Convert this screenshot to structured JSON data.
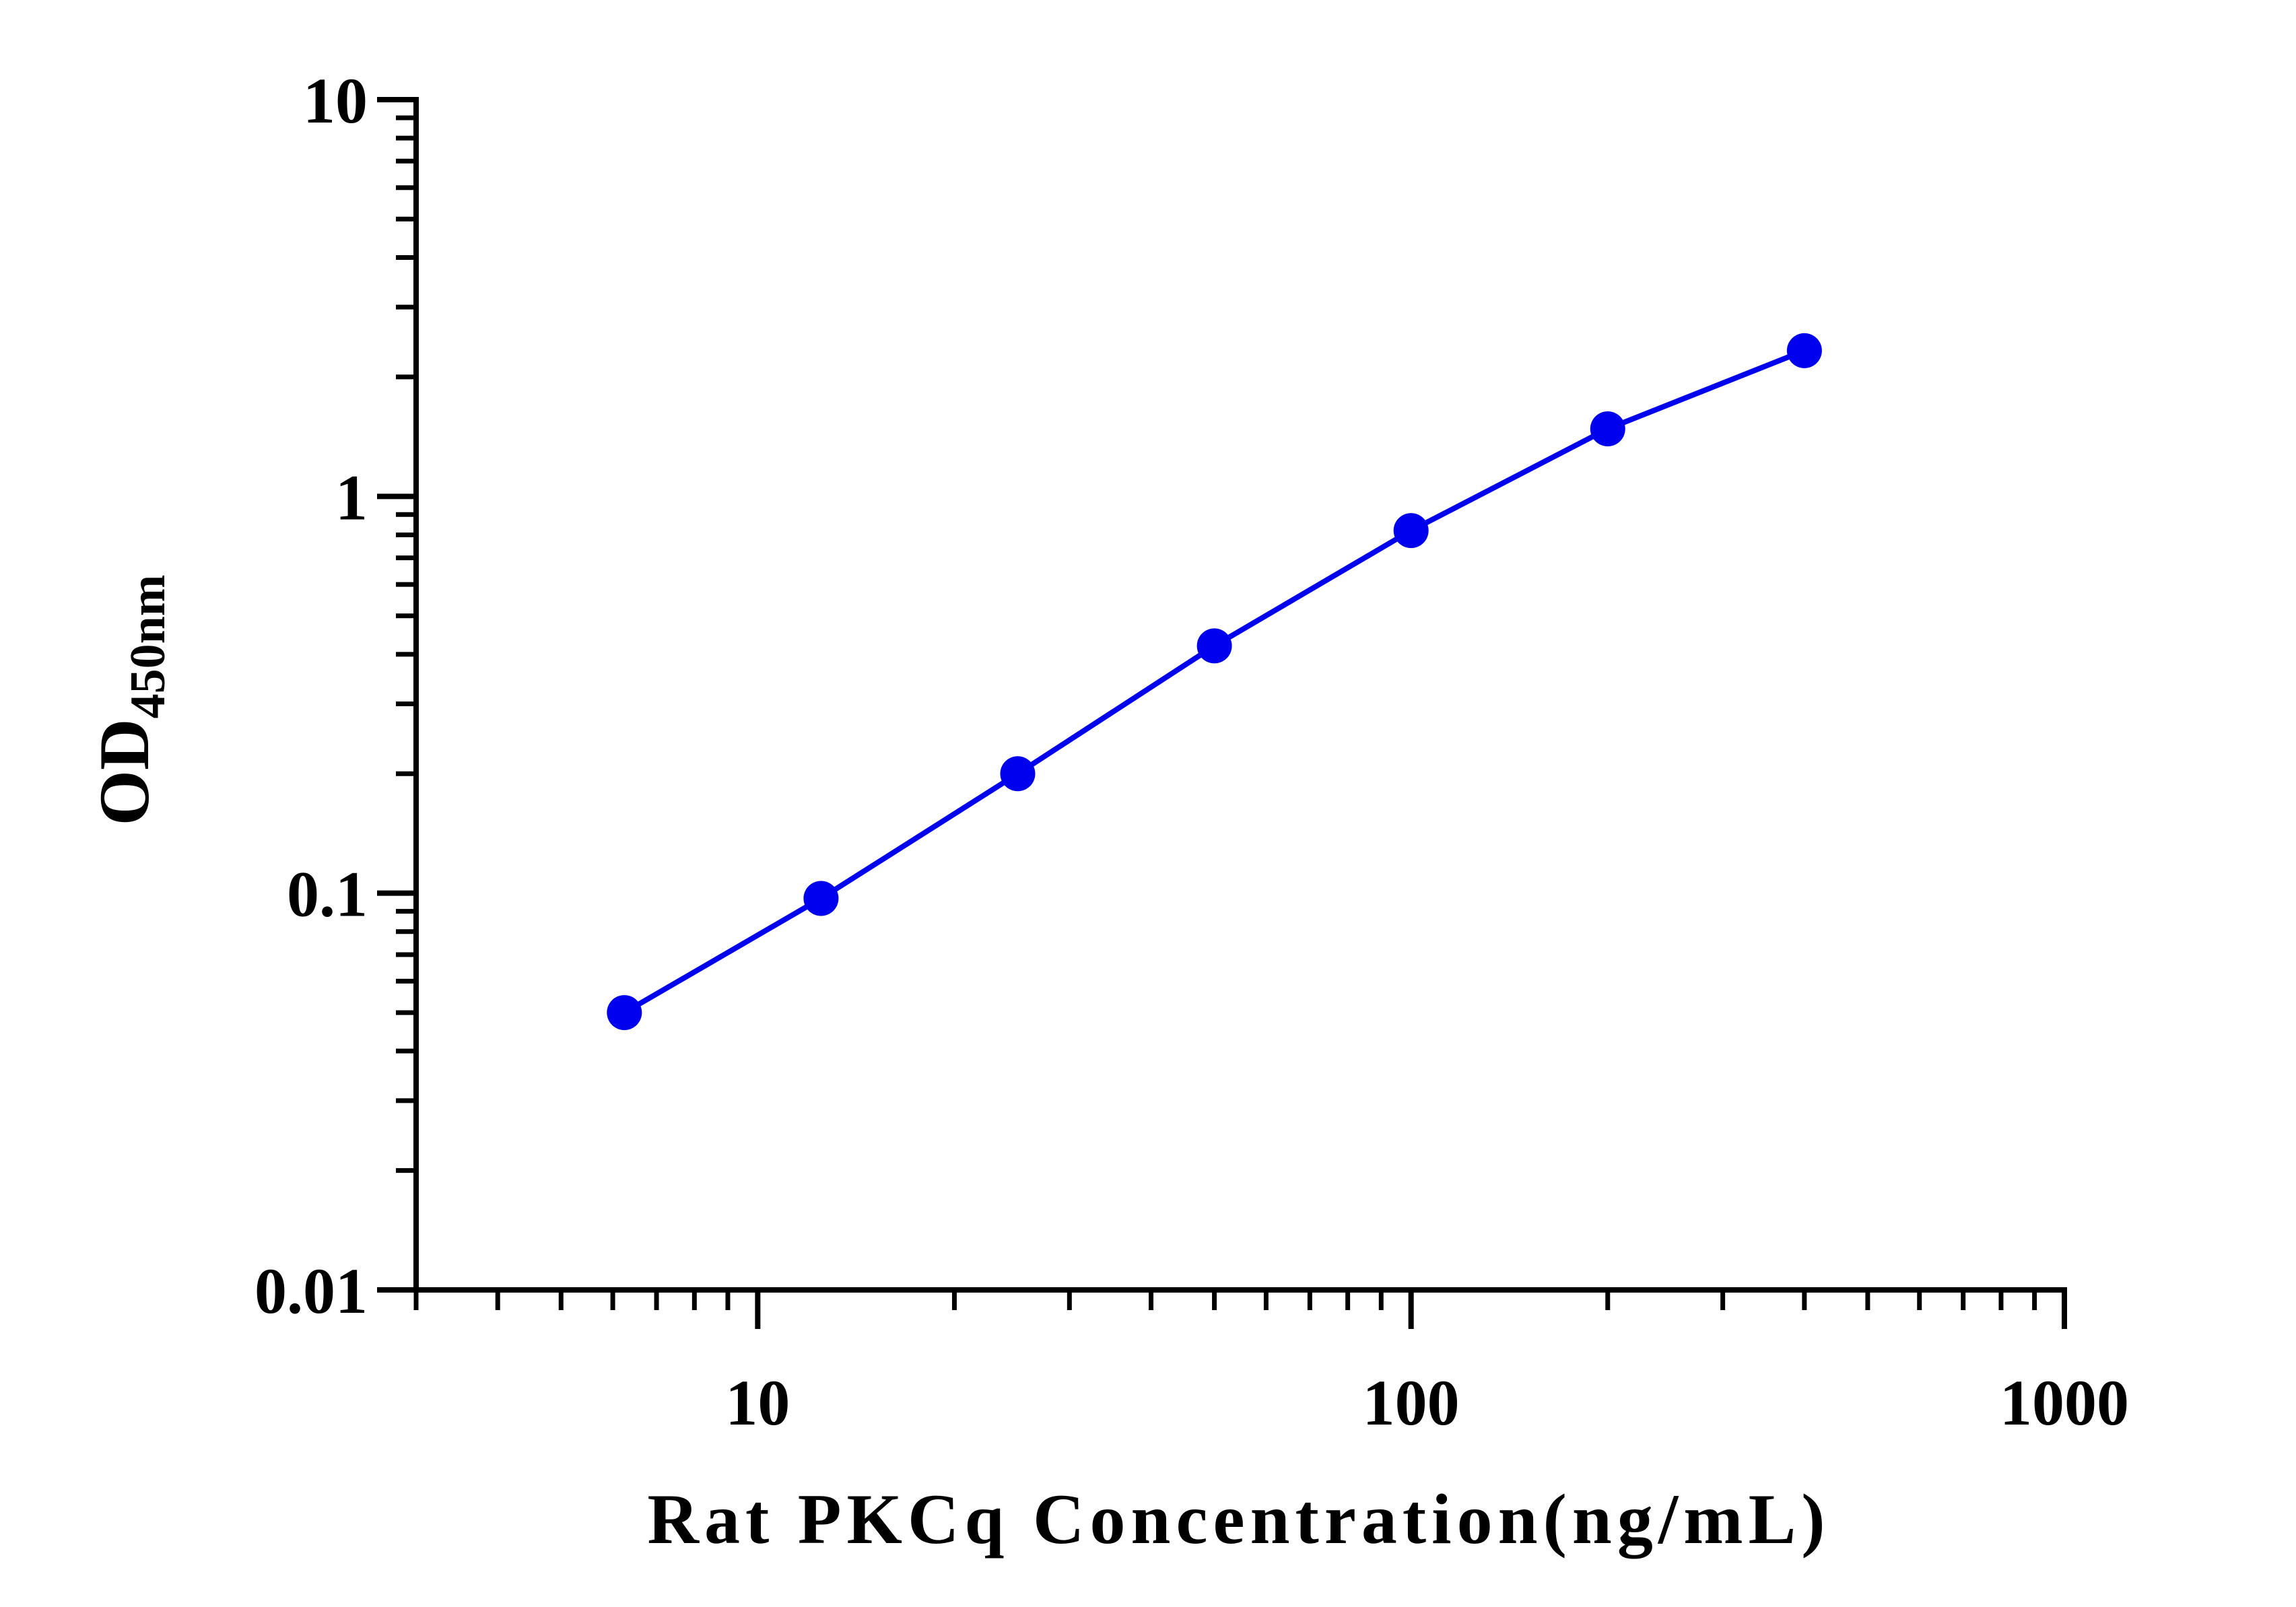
{
  "chart_data": {
    "type": "line",
    "title": "",
    "xlabel": "Rat PKCq Concentration(ng/mL)",
    "ylabel": {
      "main": "OD",
      "subscript": "450nm"
    },
    "x_scale": "log",
    "y_scale": "log",
    "xlim": [
      3,
      1000
    ],
    "ylim": [
      0.01,
      10
    ],
    "x_ticks": [
      {
        "value": 10,
        "label": "10"
      },
      {
        "value": 100,
        "label": "100"
      },
      {
        "value": 1000,
        "label": "1000"
      }
    ],
    "y_ticks": [
      {
        "value": 0.01,
        "label": "0.01"
      },
      {
        "value": 0.1,
        "label": "0.1"
      },
      {
        "value": 1,
        "label": "1"
      },
      {
        "value": 10,
        "label": "10"
      }
    ],
    "grid": false,
    "legend": "none",
    "series": [
      {
        "color": "#0000ee",
        "x": [
          6.25,
          12.5,
          25,
          50,
          100,
          200,
          400
        ],
        "y": [
          0.05,
          0.097,
          0.2,
          0.42,
          0.82,
          1.48,
          2.33
        ]
      }
    ]
  }
}
